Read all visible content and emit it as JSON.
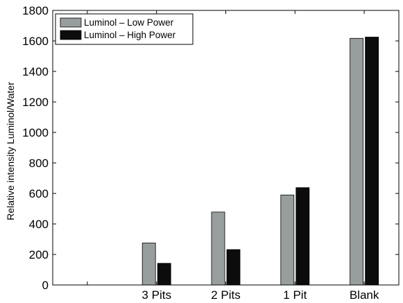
{
  "chart_data": {
    "type": "bar",
    "categories": [
      "",
      "3 Pits",
      "2 Pits",
      "1 Pit",
      "Blank"
    ],
    "series": [
      {
        "name": "Luminol – Low Power",
        "color": "#979e9d",
        "values": [
          null,
          275,
          478,
          590,
          1617
        ]
      },
      {
        "name": "Luminol – High Power",
        "color": "#0c0c0c",
        "values": [
          null,
          142,
          232,
          638,
          1625
        ]
      }
    ],
    "title": "",
    "xlabel": "",
    "ylabel": "Relative intensity Luminol/Water",
    "ylim": [
      0,
      1800
    ],
    "yticks": [
      0,
      200,
      400,
      600,
      800,
      1000,
      1200,
      1400,
      1600,
      1800
    ],
    "legend_position": "top-left",
    "grid": false
  }
}
